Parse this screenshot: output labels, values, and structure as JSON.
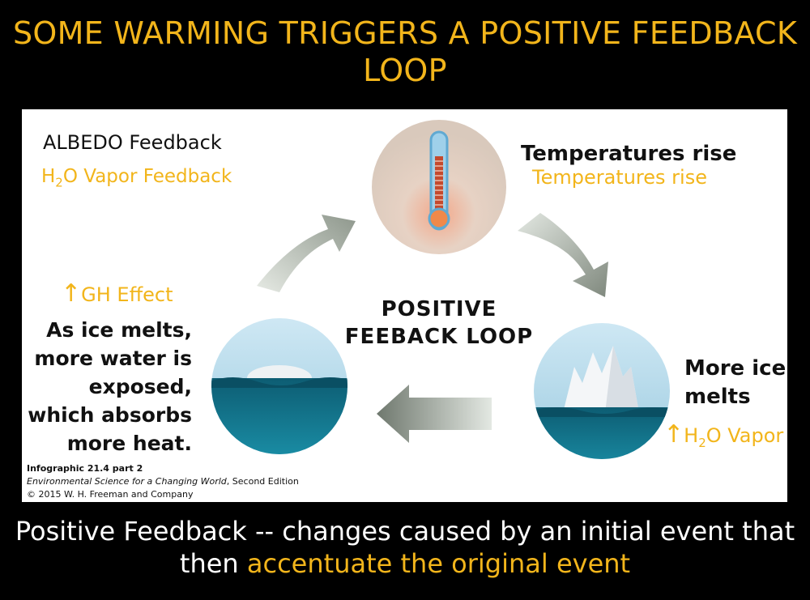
{
  "title": "SOME WARMING TRIGGERS A POSITIVE FEEDBACK LOOP",
  "labels": {
    "albedo": "ALBEDO Feedback",
    "vapor_h": "H",
    "vapor_sub": "2",
    "vapor_rest": "O Vapor Feedback",
    "temp_rise_black": "Temperatures rise",
    "temp_rise_yellow": "Temperatures rise",
    "gh_arrow": "↑",
    "gh_effect": "GH Effect",
    "ice_melts_lines": [
      "As ice melts,",
      "more water is",
      "exposed,",
      "which absorbs",
      "more heat."
    ],
    "center_line1": "POSITIVE",
    "center_line2": "FEEBACK LOOP",
    "more_ice_line1": "More ice",
    "more_ice_line2": "melts",
    "h2o_arrow": "↑",
    "h2o_h": "H",
    "h2o_sub": "2",
    "h2o_rest": "O Vapor"
  },
  "credit": {
    "line1": "Infographic 21.4 part 2",
    "line2_italic": "Environmental Science for a Changing World",
    "line2_rest": ", Second Edition",
    "line3": "© 2015 W. H. Freeman and Company"
  },
  "footer": {
    "part1": "Positive Feedback -- changes caused by an initial event that then ",
    "highlight": "accentuate the original event"
  },
  "colors": {
    "accent_yellow": "#f2b51b",
    "water": "#0e6a82",
    "sky": "#b9dcec",
    "arrow": "#8a9488"
  }
}
